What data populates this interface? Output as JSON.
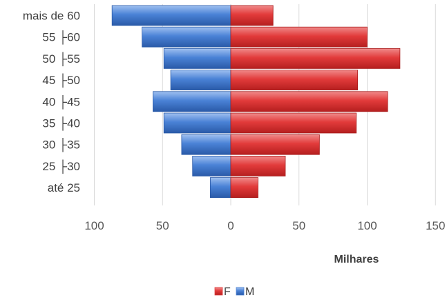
{
  "chart_data": {
    "type": "bar",
    "orientation": "horizontal",
    "layout": "population-pyramid",
    "categories": [
      "até 25",
      "25 ├30",
      "30 ├35",
      "35 ├40",
      "40 ├45",
      "45 ├50",
      "50 ├55",
      "55 ├60",
      "mais de 60"
    ],
    "series": [
      {
        "name": "F",
        "color": "#e04040",
        "values": [
          20,
          40,
          65,
          92,
          115,
          93,
          124,
          100,
          31
        ]
      },
      {
        "name": "M",
        "color": "#4a7fd0",
        "values": [
          15,
          28,
          36,
          49,
          57,
          44,
          49,
          65,
          87
        ]
      }
    ],
    "x_tick_labels": [
      "100",
      "50",
      "0",
      "50",
      "100",
      "150"
    ],
    "xlim": [
      -100,
      150
    ],
    "xlabel": "Milhares",
    "grid": "vertical",
    "legend": "bottom"
  }
}
